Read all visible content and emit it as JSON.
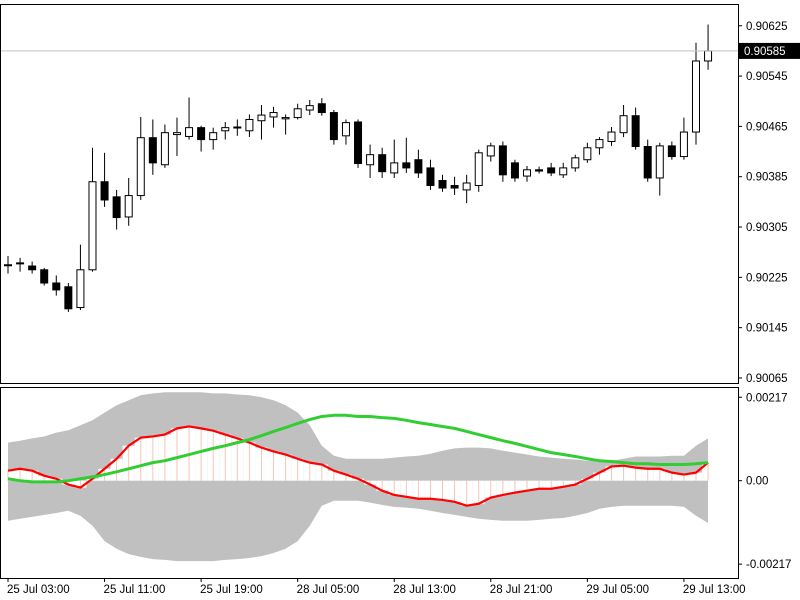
{
  "chart_data": [
    {
      "type": "candlestick",
      "categories": [
        "25 Jul 03:00",
        null,
        null,
        null,
        null,
        null,
        null,
        null,
        "25 Jul 11:00",
        null,
        null,
        null,
        null,
        null,
        null,
        null,
        "25 Jul 19:00",
        null,
        null,
        null,
        null,
        null,
        null,
        null,
        "28 Jul 05:00",
        null,
        null,
        null,
        null,
        null,
        null,
        null,
        "28 Jul 13:00",
        null,
        null,
        null,
        null,
        null,
        null,
        null,
        "28 Jul 21:00",
        null,
        null,
        null,
        null,
        null,
        null,
        null,
        "29 Jul 05:00",
        null,
        null,
        null,
        null,
        null,
        null,
        null,
        "29 Jul 13:00",
        null,
        null
      ],
      "open": [
        0.90245,
        0.90247,
        0.90243,
        0.90237,
        0.90216,
        0.9021,
        0.90177,
        0.90237,
        0.90377,
        0.90353,
        0.90321,
        0.90355,
        0.90447,
        0.90404,
        0.90452,
        0.90449,
        0.90463,
        0.90444,
        0.90458,
        0.90463,
        0.90458,
        0.90474,
        0.9048,
        0.90477,
        0.90479,
        0.90491,
        0.90501,
        0.90487,
        0.9045,
        0.90472,
        0.90404,
        0.9042,
        0.90391,
        0.90407,
        0.90412,
        0.90399,
        0.90379,
        0.90371,
        0.90364,
        0.90371,
        0.90418,
        0.90434,
        0.90407,
        0.90386,
        0.90396,
        0.90399,
        0.90388,
        0.90399,
        0.90412,
        0.90431,
        0.90441,
        0.90455,
        0.90482,
        0.90433,
        0.90383,
        0.90434,
        0.90417,
        0.90456,
        0.90569
      ],
      "high": [
        0.90259,
        0.90256,
        0.9025,
        0.9024,
        0.90228,
        0.90216,
        0.90277,
        0.90431,
        0.90423,
        0.90364,
        0.90383,
        0.9048,
        0.90476,
        0.90468,
        0.90479,
        0.90511,
        0.90466,
        0.90463,
        0.90472,
        0.90476,
        0.90484,
        0.90499,
        0.90496,
        0.90484,
        0.90501,
        0.90507,
        0.9051,
        0.90491,
        0.90476,
        0.90476,
        0.90436,
        0.90431,
        0.90444,
        0.90447,
        0.90428,
        0.90412,
        0.90388,
        0.90385,
        0.90388,
        0.90428,
        0.90439,
        0.90441,
        0.90412,
        0.90402,
        0.90401,
        0.90407,
        0.90407,
        0.9042,
        0.90439,
        0.90448,
        0.90464,
        0.90499,
        0.90495,
        0.90444,
        0.90439,
        0.90441,
        0.90479,
        0.90598,
        0.90627
      ],
      "low": [
        0.90231,
        0.90234,
        0.90231,
        0.90212,
        0.90196,
        0.9017,
        0.90173,
        0.90234,
        0.90337,
        0.90301,
        0.90307,
        0.90348,
        0.90388,
        0.90399,
        0.90418,
        0.90444,
        0.90425,
        0.90428,
        0.90444,
        0.9045,
        0.90448,
        0.90444,
        0.90463,
        0.90452,
        0.90476,
        0.90483,
        0.90482,
        0.90436,
        0.90436,
        0.90399,
        0.90383,
        0.90383,
        0.90383,
        0.90391,
        0.90383,
        0.90364,
        0.90361,
        0.90356,
        0.90343,
        0.90361,
        0.90409,
        0.90377,
        0.90377,
        0.90377,
        0.9039,
        0.90386,
        0.90383,
        0.90393,
        0.90407,
        0.9042,
        0.90434,
        0.90448,
        0.90428,
        0.90377,
        0.90355,
        0.90412,
        0.90412,
        0.90436,
        0.90555
      ],
      "close": [
        0.90245,
        0.90248,
        0.90237,
        0.90216,
        0.90205,
        0.90175,
        0.90237,
        0.90377,
        0.90348,
        0.9032,
        0.90355,
        0.90447,
        0.90407,
        0.90455,
        0.90455,
        0.90463,
        0.90444,
        0.90455,
        0.90463,
        0.90464,
        0.90476,
        0.90483,
        0.90487,
        0.90479,
        0.90493,
        0.90498,
        0.90487,
        0.90444,
        0.90471,
        0.90406,
        0.9042,
        0.90393,
        0.90407,
        0.90399,
        0.90391,
        0.90371,
        0.90367,
        0.90367,
        0.90375,
        0.90423,
        0.90434,
        0.90388,
        0.90383,
        0.90396,
        0.90394,
        0.90391,
        0.90399,
        0.90415,
        0.90431,
        0.90444,
        0.90456,
        0.90482,
        0.90433,
        0.90383,
        0.90434,
        0.90417,
        0.90456,
        0.90569,
        0.90585
      ],
      "up_color": "#ffffff",
      "down_color": "#000000",
      "wick_color": "#000000",
      "bid": 0.90585,
      "bid_color": "#c0c0c0",
      "ylim": [
        0.90057,
        0.90658
      ],
      "yticks": [
        0.90065,
        0.90145,
        0.90225,
        0.90305,
        0.90385,
        0.90465,
        0.90545,
        0.90625
      ]
    },
    {
      "type": "line",
      "band": {
        "color": "#c0c0c0",
        "upper": [
          0.00099,
          0.00104,
          0.0011,
          0.00115,
          0.00125,
          0.00131,
          0.00144,
          0.00157,
          0.00177,
          0.00196,
          0.00209,
          0.00222,
          0.00227,
          0.0023,
          0.0023,
          0.0023,
          0.0023,
          0.00227,
          0.00227,
          0.00224,
          0.00222,
          0.00217,
          0.00209,
          0.00196,
          0.00177,
          0.00144,
          0.00091,
          0.00065,
          0.00057,
          0.00057,
          0.00057,
          0.00057,
          0.0006,
          0.00063,
          0.00065,
          0.0007,
          0.00078,
          0.00084,
          0.00086,
          0.00086,
          0.00084,
          0.00078,
          0.00073,
          0.00068,
          0.00063,
          0.0006,
          0.00057,
          0.00055,
          0.00052,
          0.00052,
          0.00052,
          0.00057,
          0.00063,
          0.00063,
          0.00063,
          0.00065,
          0.00065,
          0.00091,
          0.0011
        ],
        "lower": [
          -0.00104,
          -0.00099,
          -0.00094,
          -0.00089,
          -0.00084,
          -0.00078,
          -0.00091,
          -0.00117,
          -0.00157,
          -0.00177,
          -0.00191,
          -0.00198,
          -0.00204,
          -0.00206,
          -0.00209,
          -0.00209,
          -0.00209,
          -0.00209,
          -0.00206,
          -0.00204,
          -0.00201,
          -0.00196,
          -0.00188,
          -0.00177,
          -0.00157,
          -0.00117,
          -0.00065,
          -0.00052,
          -0.00052,
          -0.00052,
          -0.00057,
          -0.00063,
          -0.00068,
          -0.0007,
          -0.00073,
          -0.00078,
          -0.00084,
          -0.00089,
          -0.00094,
          -0.00099,
          -0.00102,
          -0.00104,
          -0.00104,
          -0.00104,
          -0.00102,
          -0.00099,
          -0.00097,
          -0.00091,
          -0.00084,
          -0.00073,
          -0.00068,
          -0.00065,
          -0.00065,
          -0.00065,
          -0.00065,
          -0.00065,
          -0.00068,
          -0.00091,
          -0.0011
        ]
      },
      "series": [
        {
          "color": "#ff0000",
          "histogram_color": "#f6c4b4",
          "values": [
            0.00026,
            0.00031,
            0.00026,
            0.00013,
            5e-05,
            -0.0001,
            -0.00018,
            5e-05,
            0.00031,
            0.00057,
            0.00091,
            0.00112,
            0.00115,
            0.0012,
            0.00136,
            0.00141,
            0.00136,
            0.0013,
            0.0012,
            0.0011,
            0.00099,
            0.00086,
            0.00076,
            0.00068,
            0.00057,
            0.00047,
            0.00042,
            0.00026,
            0.00016,
            5e-05,
            -0.0001,
            -0.00026,
            -0.00037,
            -0.00042,
            -0.00047,
            -0.00047,
            -0.0005,
            -0.00055,
            -0.00065,
            -0.0006,
            -0.00044,
            -0.00037,
            -0.00031,
            -0.00026,
            -0.00021,
            -0.00021,
            -0.00016,
            -0.0001,
            5e-05,
            0.00021,
            0.00037,
            0.00039,
            0.00034,
            0.00031,
            0.00031,
            0.00021,
            0.00016,
            0.00021,
            0.00047
          ]
        },
        {
          "color": "#32cd32",
          "values": [
            5e-05,
            0,
            -3e-05,
            -3e-05,
            -3e-05,
            0,
            5e-05,
            0.0001,
            0.00016,
            0.00023,
            0.00031,
            0.00039,
            0.00047,
            0.00052,
            0.0006,
            0.00068,
            0.00076,
            0.00084,
            0.00091,
            0.00099,
            0.00107,
            0.00117,
            0.00128,
            0.00138,
            0.00149,
            0.00159,
            0.00167,
            0.0017,
            0.0017,
            0.00167,
            0.00167,
            0.00164,
            0.00162,
            0.00157,
            0.00151,
            0.00146,
            0.00141,
            0.00136,
            0.00128,
            0.0012,
            0.00112,
            0.00104,
            0.00097,
            0.00089,
            0.00081,
            0.00073,
            0.00068,
            0.00063,
            0.00057,
            0.00052,
            0.0005,
            0.00047,
            0.00044,
            0.00044,
            0.00042,
            0.00042,
            0.00042,
            0.00044,
            0.00047
          ]
        }
      ],
      "ylim": [
        -0.00253,
        0.00241
      ],
      "yticks": [
        0.00217,
        {
          "value": 0,
          "label": "0.00"
        },
        -0.00217
      ]
    }
  ]
}
